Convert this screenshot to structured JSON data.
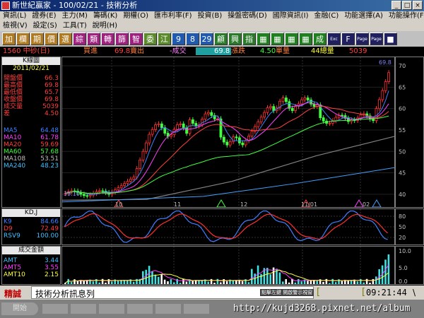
{
  "window": {
    "title": "新世紀贏家 - 100/02/21 - 技術分析"
  },
  "menu": {
    "row1": [
      "資訊(L)",
      "證券(E)",
      "主力(M)",
      "籌碼(K)",
      "期權(O)",
      "匯市利率(F)",
      "投資(B)",
      "操盤密碼(D)",
      "國際資訊(I)",
      "金融(C)",
      "功能選擇(A)",
      "功能操作(F)"
    ],
    "row2": [
      "檢視(V)",
      "設定(S)",
      "工具(T)",
      "說明(H)"
    ]
  },
  "toolbar": {
    "buttons": [
      {
        "label": "加",
        "bg": "#b07a20"
      },
      {
        "label": "欄",
        "bg": "#b07a20"
      },
      {
        "label": "期",
        "bg": "#b07a20"
      },
      {
        "label": "價",
        "bg": "#b07a20"
      },
      {
        "label": "選",
        "bg": "#b07a20"
      },
      {
        "label": "綜",
        "bg": "#a02080"
      },
      {
        "label": "類",
        "bg": "#a02080"
      },
      {
        "label": "轉",
        "bg": "#a02080"
      },
      {
        "label": "篩",
        "bg": "#a02080"
      },
      {
        "label": "智",
        "bg": "#a02080"
      },
      {
        "label": "委",
        "bg": "#5a8a2a"
      },
      {
        "label": "江",
        "bg": "#5a8a2a"
      },
      {
        "label": "9",
        "bg": "#205ab0"
      },
      {
        "label": "8",
        "bg": "#205ab0"
      },
      {
        "label": "29",
        "bg": "#205ab0"
      },
      {
        "label": "顧",
        "bg": "#2a7a2a"
      },
      {
        "label": "興",
        "bg": "#2a7a2a"
      },
      {
        "label": "指",
        "bg": "#2a7a2a"
      },
      {
        "label": "▦",
        "bg": "#208020"
      },
      {
        "label": "▦",
        "bg": "#208020"
      },
      {
        "label": "▦",
        "bg": "#208020"
      },
      {
        "label": "▦",
        "bg": "#208020"
      },
      {
        "label": "成",
        "bg": "#208020"
      },
      {
        "label": "Exc",
        "bg": "#202060"
      },
      {
        "label": "F",
        "bg": "#202060"
      },
      {
        "label": "Page",
        "bg": "#202060"
      },
      {
        "label": "Page",
        "bg": "#202060"
      },
      {
        "label": "■",
        "bg": "#202060"
      }
    ]
  },
  "quote": {
    "code": "1560 中砂(日)",
    "buy_label": "買進",
    "buy_value": "69.8",
    "sell_label": "賣出",
    "last_label": "-成交",
    "last_value": "69.8",
    "change_label": "漲跌",
    "change_value": "4.50",
    "vol_label": "單量",
    "total_label": "44總量",
    "total_value": "5039"
  },
  "kpanel": {
    "title": "K線圖",
    "date": "2011/02/21",
    "rows": [
      {
        "label": "開盤價",
        "value": "66.3",
        "color": "#ff4040"
      },
      {
        "label": "最高價",
        "value": "69.8",
        "color": "#ff4040"
      },
      {
        "label": "最低價",
        "value": "65.7",
        "color": "#ff4040"
      },
      {
        "label": "收盤價",
        "value": "69.8",
        "color": "#ff4040"
      },
      {
        "label": "成交量",
        "value": "5039",
        "color": "#ff4040"
      },
      {
        "label": "差",
        "value": "4.50",
        "color": "#ff4040"
      }
    ],
    "ma": [
      {
        "label": "MA5",
        "value": "64.48",
        "color": "#4080ff"
      },
      {
        "label": "MA10",
        "value": "61.78",
        "color": "#ff40ff"
      },
      {
        "label": "MA20",
        "value": "59.69",
        "color": "#ff4040"
      },
      {
        "label": "MA60",
        "value": "57.68",
        "color": "#40ff40"
      },
      {
        "label": "MA108",
        "value": "53.51",
        "color": "#c0c0c0"
      },
      {
        "label": "MA240",
        "value": "48.23",
        "color": "#40c0ff"
      }
    ]
  },
  "kdpanel": {
    "title": "KD,J",
    "rows": [
      {
        "label": "K9",
        "value": "84.66",
        "color": "#4080ff"
      },
      {
        "label": "D9",
        "value": "72.49",
        "color": "#ff4040"
      },
      {
        "label": "RSV9",
        "value": "100.00",
        "color": "#40c0ff"
      }
    ]
  },
  "amtpanel": {
    "title": "成交金額",
    "rows": [
      {
        "label": "AMT",
        "value": "3.44",
        "color": "#40c0ff"
      },
      {
        "label": "AMT5",
        "value": "3.55",
        "color": "#ff40ff"
      },
      {
        "label": "AMT10",
        "value": "2.15",
        "color": "#ffff40"
      }
    ]
  },
  "chart_data": {
    "type": "candlestick",
    "y_range": [
      37,
      72
    ],
    "y_ticks": [
      "70",
      "65",
      "60",
      "55",
      "50",
      "45",
      "40"
    ],
    "x_labels": [
      "10",
      "11",
      "12",
      "11/01",
      "02"
    ],
    "marker_high": "69.8",
    "marker_low": "39.10",
    "kd_ticks": [
      "80",
      "50",
      "20"
    ],
    "amt_ticks": [
      "10.0",
      "5.0",
      "0.0"
    ]
  },
  "status": {
    "label": "精誠",
    "message": "技術分析訊息列",
    "hint": "點擊左鍵 開啟警示視窗",
    "bracket_left": "[",
    "bracket_right": "[",
    "time": "09:21:44",
    "time_suffix": "\\"
  },
  "taskbar": {
    "start": "開始",
    "watermark": "http://kujd3268.pixnet.net/album"
  }
}
